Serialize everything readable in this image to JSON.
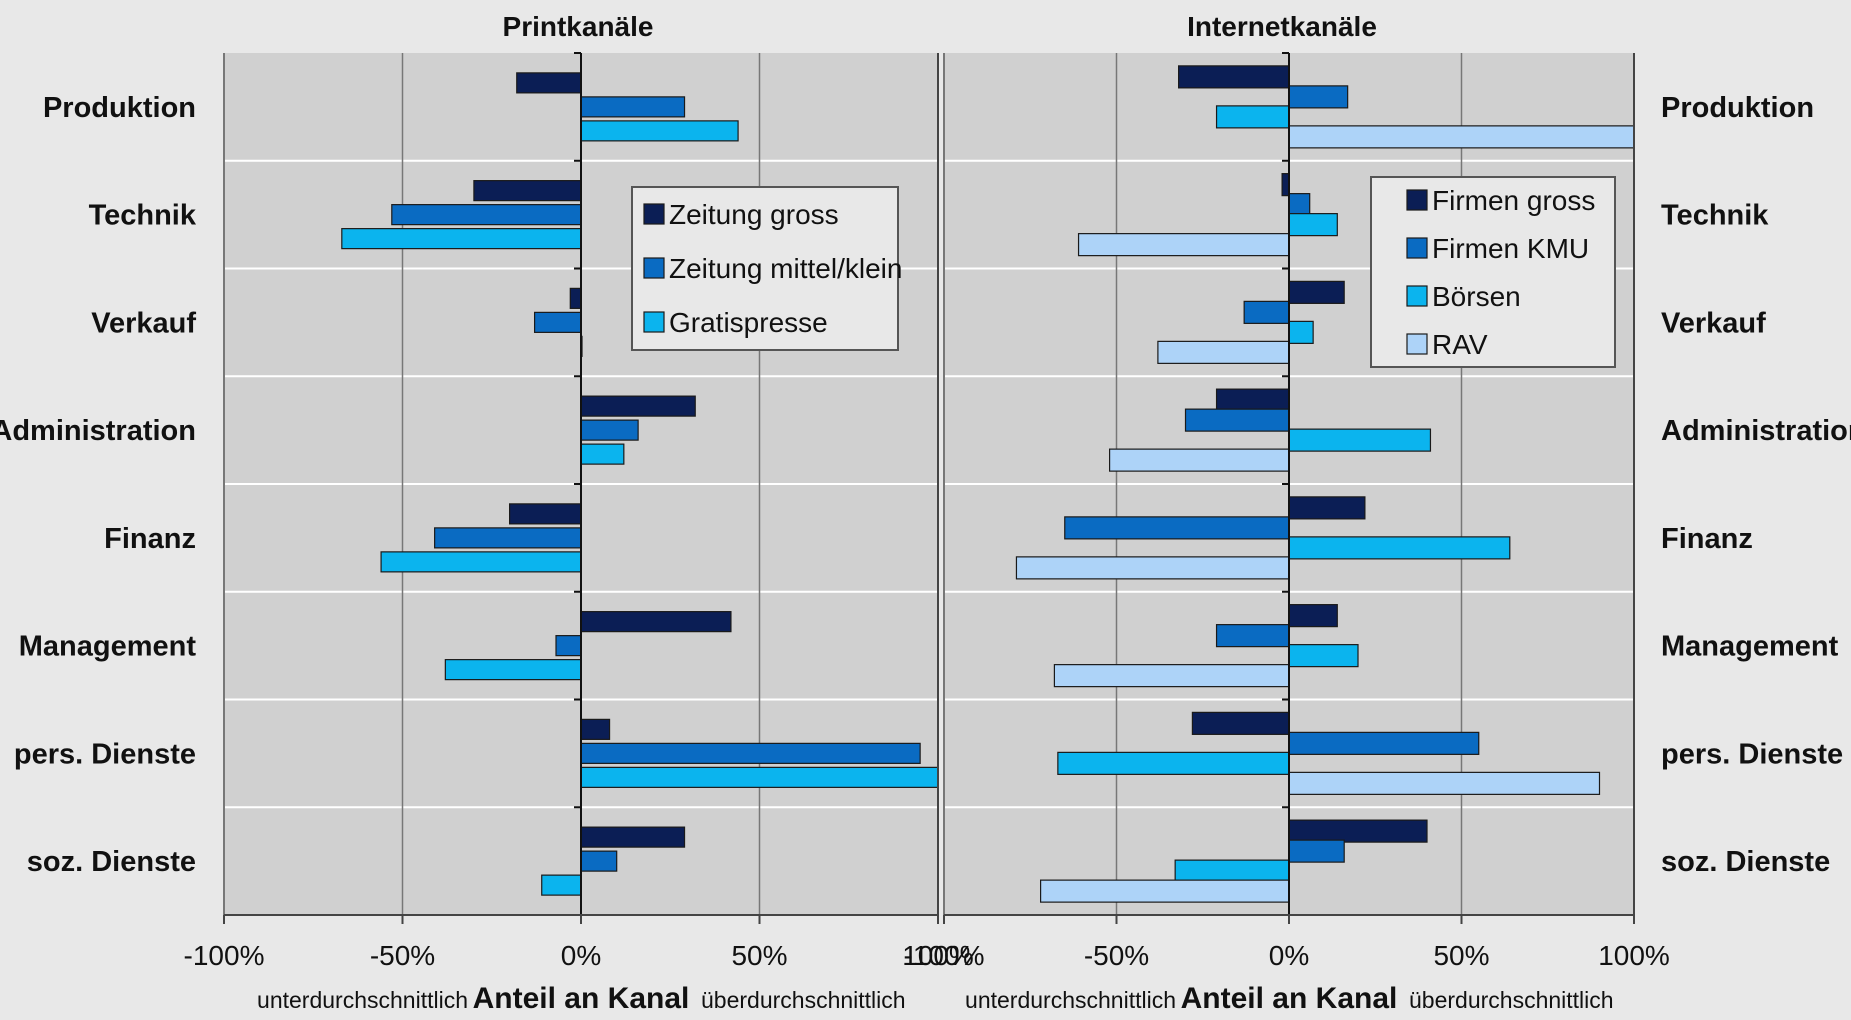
{
  "chart_data": [
    {
      "type": "bar",
      "orientation": "horizontal",
      "title": "Printkanäle",
      "categories": [
        "Produktion",
        "Technik",
        "Verkauf",
        "Administration",
        "Finanz",
        "Management",
        "pers. Dienste",
        "soz. Dienste"
      ],
      "series": [
        {
          "name": "Zeitung gross",
          "color": "#0b1e55",
          "values": [
            -18,
            -30,
            -3,
            32,
            -20,
            42,
            8,
            29
          ]
        },
        {
          "name": "Zeitung mittel/klein",
          "color": "#0a6bc2",
          "values": [
            29,
            -53,
            -13,
            16,
            -41,
            -7,
            95,
            10
          ]
        },
        {
          "name": "Gratispresse",
          "color": "#0bb4ee",
          "values": [
            44,
            -67,
            0,
            12,
            -56,
            -38,
            101,
            -11
          ]
        }
      ],
      "xlim": [
        -100,
        100
      ],
      "xticks": [
        "-100%",
        "-50%",
        "0%",
        "50%",
        "100%"
      ],
      "xlabel": "Anteil an Kanal",
      "xlabel_left": "unterdurchschnittlich",
      "xlabel_right": "überdurchschnittlich",
      "grid": true,
      "legend_position": "upper-right"
    },
    {
      "type": "bar",
      "orientation": "horizontal",
      "title": "Internetkanäle",
      "categories": [
        "Produktion",
        "Technik",
        "Verkauf",
        "Administration",
        "Finanz",
        "Management",
        "pers. Dienste",
        "soz. Dienste"
      ],
      "series": [
        {
          "name": "Firmen gross",
          "color": "#0b1e55",
          "values": [
            -32,
            -2,
            16,
            -21,
            22,
            14,
            -28,
            40
          ]
        },
        {
          "name": "Firmen KMU",
          "color": "#0a6bc2",
          "values": [
            17,
            6,
            -13,
            -30,
            -65,
            -21,
            55,
            16
          ]
        },
        {
          "name": "Börsen",
          "color": "#0bb4ee",
          "values": [
            -21,
            14,
            7,
            41,
            64,
            20,
            -67,
            -33
          ]
        },
        {
          "name": "RAV",
          "color": "#add3f8",
          "values": [
            101,
            -61,
            -38,
            -52,
            -79,
            -68,
            90,
            -72
          ]
        }
      ],
      "xlim": [
        -100,
        100
      ],
      "xticks": [
        "-100%",
        "-50%",
        "0%",
        "50%",
        "100%"
      ],
      "xlabel": "Anteil an Kanal",
      "xlabel_left": "unterdurchschnittlich",
      "xlabel_right": "überdurchschnittlich",
      "grid": true,
      "legend_position": "upper-right"
    }
  ]
}
